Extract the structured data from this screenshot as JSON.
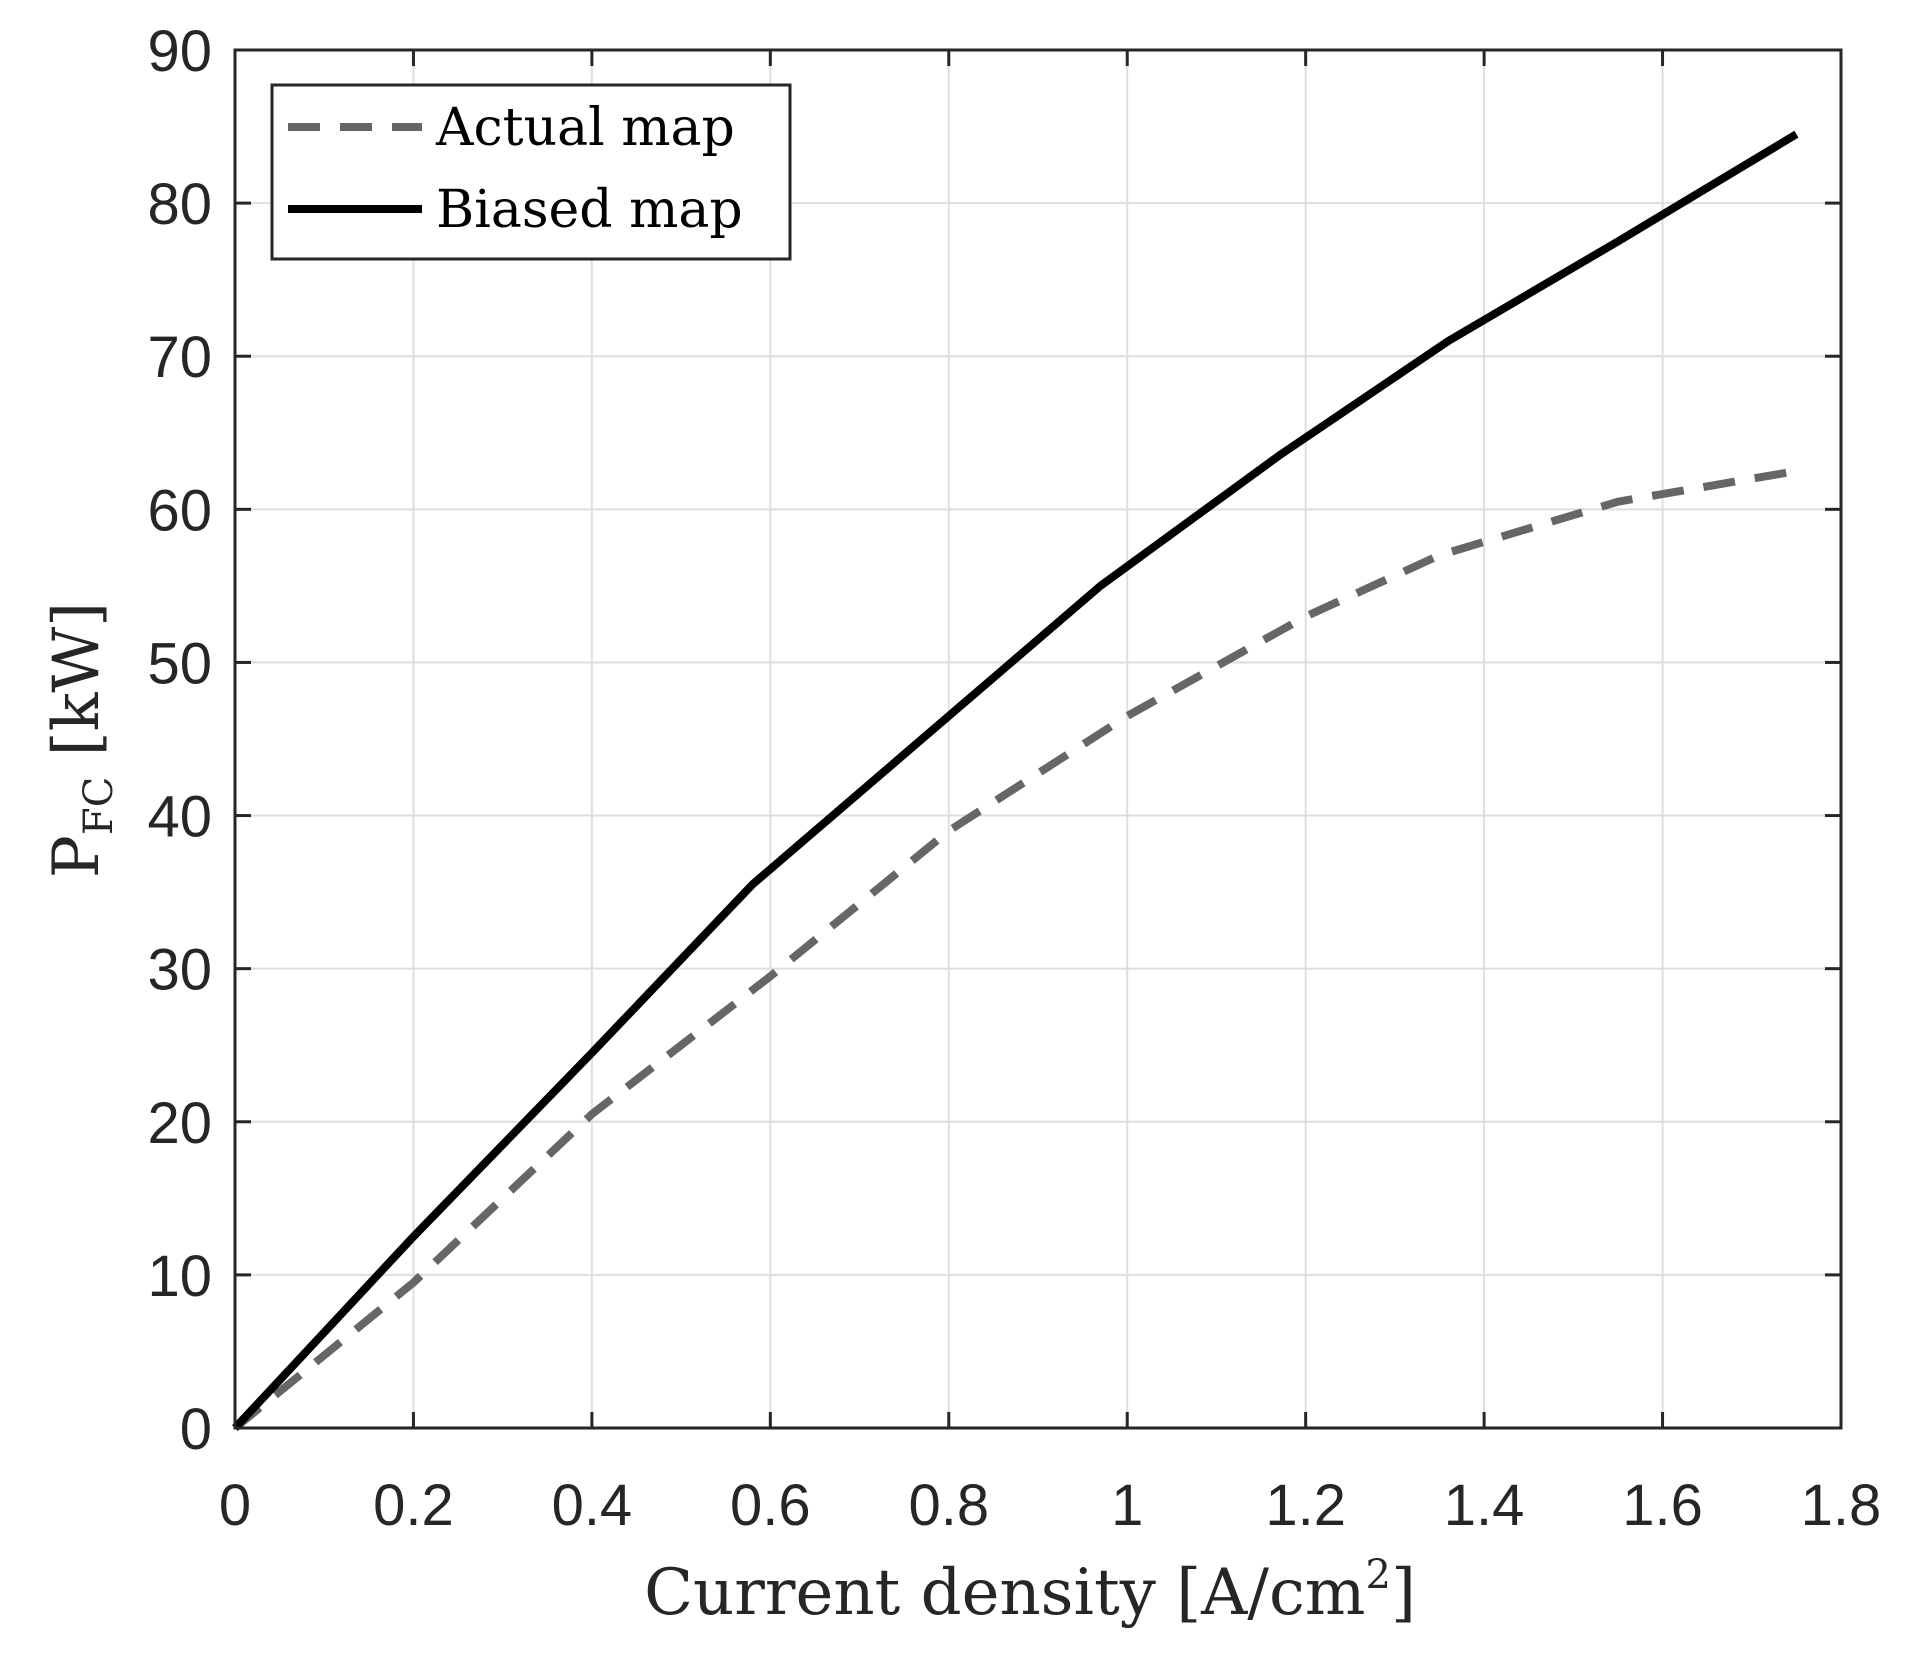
{
  "chart_data": {
    "type": "line",
    "xlabel": "Current density [A/cm",
    "xlabel_superscript": "2",
    "xlabel_close": "]",
    "ylabel": "P",
    "ylabel_subscript": "FC",
    "ylabel_unit": " [kW]",
    "xlim": [
      0,
      1.8
    ],
    "ylim": [
      0,
      90
    ],
    "xticks": [
      0,
      0.2,
      0.4,
      0.6,
      0.8,
      1,
      1.2,
      1.4,
      1.6,
      1.8
    ],
    "xtick_labels": [
      "0",
      "0.2",
      "0.4",
      "0.6",
      "0.8",
      "1",
      "1.2",
      "1.4",
      "1.6",
      "1.8"
    ],
    "yticks": [
      0,
      10,
      20,
      30,
      40,
      50,
      60,
      70,
      80,
      90
    ],
    "ytick_labels": [
      "0",
      "10",
      "20",
      "30",
      "40",
      "50",
      "60",
      "70",
      "80",
      "90"
    ],
    "grid": true,
    "legend_position": "top-left",
    "series": [
      {
        "name": "Actual map",
        "style": "dashed",
        "color": "#666666",
        "x": [
          0,
          0.2,
          0.4,
          0.6,
          0.8,
          1.0,
          1.2,
          1.35,
          1.55,
          1.75
        ],
        "y": [
          0,
          9.5,
          20.5,
          29.5,
          39,
          46.5,
          53,
          57,
          60.5,
          62.5
        ]
      },
      {
        "name": "Biased map",
        "style": "solid",
        "color": "#000000",
        "x": [
          0,
          0.2,
          0.4,
          0.58,
          0.78,
          0.97,
          1.17,
          1.36,
          1.55,
          1.75
        ],
        "y": [
          0,
          12.5,
          24.5,
          35.5,
          45.5,
          55,
          63.5,
          71,
          77.5,
          84.5
        ]
      }
    ]
  }
}
